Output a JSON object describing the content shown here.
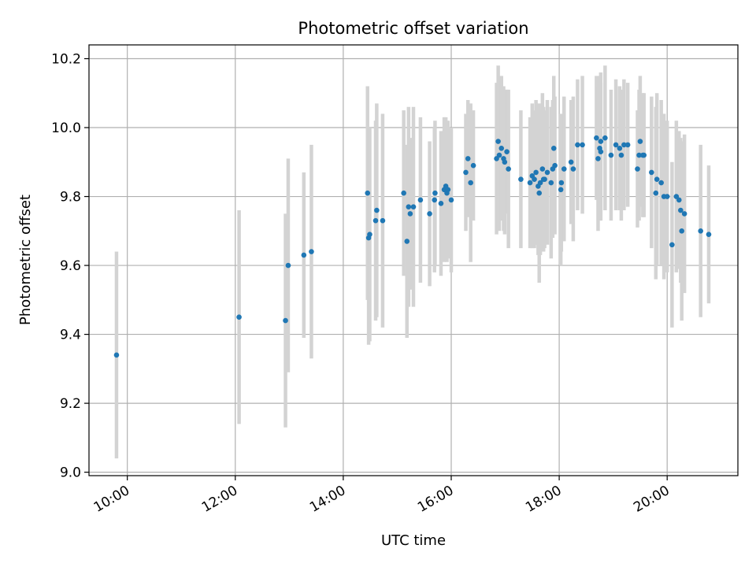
{
  "chart_data": {
    "type": "scatter",
    "title": "Photometric offset variation",
    "xlabel": "UTC time",
    "ylabel": "Photometric offset",
    "grid": true,
    "xlim_hours": [
      9.29,
      21.31
    ],
    "ylim": [
      8.99,
      10.24
    ],
    "x_ticks": [
      {
        "hour": 10,
        "label": "10:00"
      },
      {
        "hour": 12,
        "label": "12:00"
      },
      {
        "hour": 14,
        "label": "14:00"
      },
      {
        "hour": 16,
        "label": "16:00"
      },
      {
        "hour": 18,
        "label": "18:00"
      },
      {
        "hour": 20,
        "label": "20:00"
      }
    ],
    "y_ticks": [
      {
        "value": 9.0,
        "label": "9.0"
      },
      {
        "value": 9.2,
        "label": "9.2"
      },
      {
        "value": 9.4,
        "label": "9.4"
      },
      {
        "value": 9.6,
        "label": "9.6"
      },
      {
        "value": 9.8,
        "label": "9.8"
      },
      {
        "value": 10.0,
        "label": "10.0"
      },
      {
        "value": 10.2,
        "label": "10.2"
      }
    ],
    "colors": {
      "points": "#1f77b4",
      "errorbars": "#d3d3d3",
      "grid": "#b0b0b0"
    },
    "series": [
      {
        "name": "offset",
        "x_hours": [
          9.8,
          12.07,
          12.93,
          12.98,
          13.27,
          13.41,
          14.45,
          14.47,
          14.49,
          14.6,
          14.62,
          14.73,
          15.12,
          15.18,
          15.21,
          15.24,
          15.3,
          15.43,
          15.6,
          15.69,
          15.7,
          15.81,
          15.87,
          15.9,
          15.92,
          15.94,
          16.0,
          16.27,
          16.31,
          16.36,
          16.41,
          16.84,
          16.87,
          16.89,
          16.93,
          16.97,
          16.99,
          17.03,
          17.06,
          17.29,
          17.46,
          17.5,
          17.54,
          17.57,
          17.61,
          17.63,
          17.65,
          17.69,
          17.71,
          17.73,
          17.78,
          17.85,
          17.88,
          17.9,
          17.92,
          18.03,
          18.04,
          18.09,
          18.22,
          18.26,
          18.34,
          18.43,
          18.69,
          18.72,
          18.75,
          18.77,
          18.77,
          18.85,
          18.96,
          19.05,
          19.12,
          19.15,
          19.2,
          19.27,
          19.45,
          19.48,
          19.5,
          19.55,
          19.57,
          19.71,
          19.79,
          19.81,
          19.89,
          19.94,
          20.0,
          20.09,
          20.17,
          20.22,
          20.25,
          20.27,
          20.32,
          20.62,
          20.77
        ],
        "y": [
          9.34,
          9.45,
          9.44,
          9.6,
          9.63,
          9.64,
          9.81,
          9.68,
          9.69,
          9.73,
          9.76,
          9.73,
          9.81,
          9.67,
          9.77,
          9.75,
          9.77,
          9.79,
          9.75,
          9.79,
          9.81,
          9.78,
          9.82,
          9.83,
          9.81,
          9.82,
          9.79,
          9.87,
          9.91,
          9.84,
          9.89,
          9.91,
          9.96,
          9.92,
          9.94,
          9.91,
          9.9,
          9.93,
          9.88,
          9.85,
          9.84,
          9.86,
          9.85,
          9.87,
          9.83,
          9.81,
          9.84,
          9.88,
          9.85,
          9.85,
          9.87,
          9.84,
          9.88,
          9.94,
          9.89,
          9.82,
          9.84,
          9.88,
          9.9,
          9.88,
          9.95,
          9.95,
          9.97,
          9.91,
          9.94,
          9.93,
          9.96,
          9.97,
          9.92,
          9.95,
          9.94,
          9.92,
          9.95,
          9.95,
          9.88,
          9.92,
          9.96,
          9.92,
          9.92,
          9.87,
          9.81,
          9.85,
          9.84,
          9.8,
          9.8,
          9.66,
          9.8,
          9.79,
          9.76,
          9.7,
          9.75,
          9.7,
          9.69
        ],
        "err": [
          0.3,
          0.31,
          0.31,
          0.31,
          0.24,
          0.31,
          0.31,
          0.31,
          0.31,
          0.29,
          0.31,
          0.31,
          0.24,
          0.28,
          0.29,
          0.22,
          0.29,
          0.24,
          0.21,
          0.21,
          0.21,
          0.21,
          0.21,
          0.2,
          0.2,
          0.2,
          0.21,
          0.17,
          0.17,
          0.23,
          0.16,
          0.22,
          0.22,
          0.22,
          0.21,
          0.21,
          0.21,
          0.18,
          0.23,
          0.2,
          0.19,
          0.21,
          0.2,
          0.21,
          0.2,
          0.26,
          0.21,
          0.22,
          0.21,
          0.2,
          0.21,
          0.22,
          0.2,
          0.21,
          0.2,
          0.22,
          0.2,
          0.21,
          0.18,
          0.21,
          0.19,
          0.2,
          0.18,
          0.21,
          0.21,
          0.2,
          0.2,
          0.21,
          0.19,
          0.19,
          0.18,
          0.19,
          0.19,
          0.18,
          0.17,
          0.19,
          0.19,
          0.18,
          0.18,
          0.22,
          0.25,
          0.25,
          0.24,
          0.24,
          0.22,
          0.24,
          0.22,
          0.2,
          0.21,
          0.26,
          0.23,
          0.25,
          0.2
        ]
      }
    ]
  }
}
